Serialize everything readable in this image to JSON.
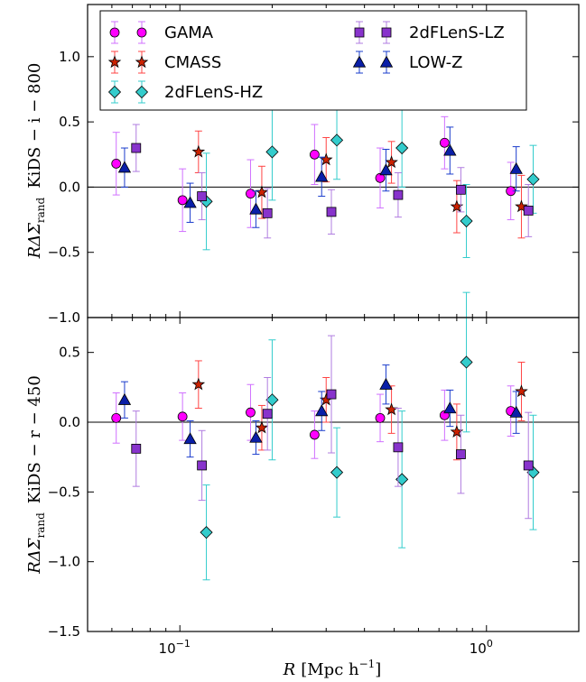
{
  "chart_data": [
    {
      "type": "scatter",
      "panel": "top",
      "ylabel": "RΔΣ_rand  KiDS − i − 800",
      "ylim": [
        -1.0,
        1.4
      ],
      "yticks": [
        {
          "v": -1.0,
          "label": "−1.0"
        },
        {
          "v": -0.5,
          "label": "−0.5"
        },
        {
          "v": 0.0,
          "label": "0.0"
        },
        {
          "v": 0.5,
          "label": "0.5"
        },
        {
          "v": 1.0,
          "label": "1.0"
        }
      ],
      "x_scale": "log",
      "xlim": [
        0.05,
        2.0
      ],
      "series": [
        {
          "name": "GAMA",
          "color": "#ff00ff",
          "marker": "circle",
          "err_color": "#d070ff",
          "x": [
            0.062,
            0.102,
            0.17,
            0.275,
            0.45,
            0.73,
            1.2
          ],
          "y": [
            0.18,
            -0.1,
            -0.05,
            0.25,
            0.07,
            0.34,
            -0.03
          ],
          "err": [
            0.24,
            0.24,
            0.26,
            0.23,
            0.23,
            0.2,
            0.22
          ]
        },
        {
          "name": "CMASS",
          "color": "#cc2200",
          "marker": "star",
          "err_color": "#ff4444",
          "x": [
            0.115,
            0.185,
            0.3,
            0.49,
            0.8,
            1.3
          ],
          "y": [
            0.27,
            -0.04,
            0.21,
            0.19,
            -0.15,
            -0.15
          ],
          "err": [
            0.16,
            0.2,
            0.17,
            0.16,
            0.2,
            0.24
          ]
        },
        {
          "name": "2dFLenS-HZ",
          "color": "#33cccc",
          "marker": "diamond",
          "err_color": "#33cccc",
          "x": [
            0.122,
            0.2,
            0.325,
            0.53,
            0.86,
            1.42
          ],
          "y": [
            -0.11,
            0.27,
            0.36,
            0.3,
            -0.26,
            0.06
          ],
          "err": [
            0.37,
            0.37,
            0.3,
            0.3,
            0.28,
            0.26
          ]
        },
        {
          "name": "2dFLenS-LZ",
          "color": "#8833cc",
          "marker": "square",
          "err_color": "#b07ce0",
          "x": [
            0.072,
            0.118,
            0.193,
            0.312,
            0.515,
            0.825,
            1.37
          ],
          "y": [
            0.3,
            -0.07,
            -0.2,
            -0.19,
            -0.06,
            -0.02,
            -0.18
          ],
          "err": [
            0.18,
            0.18,
            0.19,
            0.17,
            0.17,
            0.17,
            0.2
          ]
        },
        {
          "name": "LOW-Z",
          "color": "#0a1fa8",
          "marker": "triangle",
          "err_color": "#1a3ccc",
          "x": [
            0.066,
            0.108,
            0.177,
            0.29,
            0.47,
            0.76,
            1.25
          ],
          "y": [
            0.15,
            -0.12,
            -0.17,
            0.08,
            0.13,
            0.28,
            0.14
          ],
          "err": [
            0.15,
            0.15,
            0.14,
            0.15,
            0.16,
            0.18,
            0.17
          ]
        }
      ],
      "legend": {
        "placement": "top-left",
        "columns": [
          [
            "GAMA",
            "CMASS",
            "2dFLenS-HZ"
          ],
          [
            "2dFLenS-LZ",
            "LOW-Z"
          ]
        ]
      }
    },
    {
      "type": "scatter",
      "panel": "bottom",
      "ylabel": "RΔΣ_rand  KiDS − r − 450",
      "xlabel": "R [Mpc h⁻¹]",
      "ylim": [
        -1.5,
        0.75
      ],
      "yticks": [
        {
          "v": -1.5,
          "label": "−1.5"
        },
        {
          "v": -1.0,
          "label": "−1.0"
        },
        {
          "v": -0.5,
          "label": "−0.5"
        },
        {
          "v": 0.0,
          "label": "0.0"
        },
        {
          "v": 0.5,
          "label": "0.5"
        }
      ],
      "xticks": [
        {
          "v": 0.1,
          "base": "10",
          "exp": "−1"
        },
        {
          "v": 1.0,
          "base": "10",
          "exp": "0"
        }
      ],
      "x_scale": "log",
      "xlim": [
        0.05,
        2.0
      ],
      "series": [
        {
          "name": "GAMA",
          "color": "#ff00ff",
          "marker": "circle",
          "err_color": "#d070ff",
          "x": [
            0.062,
            0.102,
            0.17,
            0.275,
            0.45,
            0.73,
            1.2
          ],
          "y": [
            0.03,
            0.04,
            0.07,
            -0.09,
            0.03,
            0.05,
            0.08
          ],
          "err": [
            0.18,
            0.17,
            0.2,
            0.17,
            0.17,
            0.18,
            0.18
          ]
        },
        {
          "name": "CMASS",
          "color": "#cc2200",
          "marker": "star",
          "err_color": "#ff4444",
          "x": [
            0.115,
            0.185,
            0.3,
            0.49,
            0.8,
            1.3
          ],
          "y": [
            0.27,
            -0.04,
            0.16,
            0.09,
            -0.07,
            0.22
          ],
          "err": [
            0.17,
            0.16,
            0.16,
            0.17,
            0.2,
            0.21
          ]
        },
        {
          "name": "2dFLenS-HZ",
          "color": "#33cccc",
          "marker": "diamond",
          "err_color": "#33cccc",
          "x": [
            0.122,
            0.2,
            0.325,
            0.53,
            0.86,
            1.42
          ],
          "y": [
            -0.79,
            0.16,
            -0.36,
            -0.41,
            0.43,
            -0.36
          ],
          "err": [
            0.34,
            0.43,
            0.32,
            0.49,
            0.5,
            0.41
          ]
        },
        {
          "name": "2dFLenS-LZ",
          "color": "#8833cc",
          "marker": "square",
          "err_color": "#b07ce0",
          "x": [
            0.072,
            0.118,
            0.193,
            0.312,
            0.515,
            0.825,
            1.37
          ],
          "y": [
            -0.19,
            -0.31,
            0.06,
            0.2,
            -0.18,
            -0.23,
            -0.31
          ],
          "err": [
            0.27,
            0.25,
            0.26,
            0.42,
            0.28,
            0.28,
            0.38
          ]
        },
        {
          "name": "LOW-Z",
          "color": "#0a1fa8",
          "marker": "triangle",
          "err_color": "#1a3ccc",
          "x": [
            0.066,
            0.108,
            0.177,
            0.29,
            0.47,
            0.76,
            1.25
          ],
          "y": [
            0.16,
            -0.12,
            -0.11,
            0.08,
            0.27,
            0.1,
            0.07
          ],
          "err": [
            0.13,
            0.13,
            0.12,
            0.14,
            0.14,
            0.13,
            0.15
          ]
        }
      ]
    }
  ],
  "labels": {
    "top_ylabel_main": "RΔΣ",
    "top_ylabel_sub": "rand",
    "top_ylabel_tail": "KiDS − i − 800",
    "bottom_ylabel_main": "RΔΣ",
    "bottom_ylabel_sub": "rand",
    "bottom_ylabel_tail": "KiDS − r − 450",
    "xlabel_main": "R",
    "xlabel_unit": "[Mpc h",
    "xlabel_exp": "−1",
    "xlabel_close": "]"
  }
}
